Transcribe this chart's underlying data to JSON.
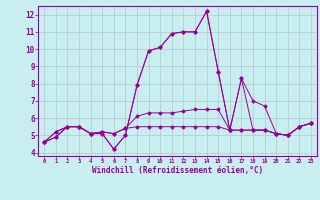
{
  "xlabel": "Windchill (Refroidissement éolien,°C)",
  "background_color": "#c8eef0",
  "grid_color": "#b0c8d0",
  "line_color": "#990099",
  "xlim": [
    -0.5,
    23.5
  ],
  "ylim": [
    3.8,
    12.5
  ],
  "yticks": [
    4,
    5,
    6,
    7,
    8,
    9,
    10,
    11,
    12
  ],
  "xticks": [
    0,
    1,
    2,
    3,
    4,
    5,
    6,
    7,
    8,
    9,
    10,
    11,
    12,
    13,
    14,
    15,
    16,
    17,
    18,
    19,
    20,
    21,
    22,
    23
  ],
  "series": [
    [
      4.6,
      4.9,
      5.5,
      5.5,
      5.1,
      5.1,
      4.2,
      5.0,
      7.9,
      9.9,
      10.1,
      10.9,
      11.0,
      11.0,
      12.2,
      8.7,
      5.3,
      8.3,
      7.0,
      6.7,
      5.1,
      5.0,
      5.5,
      5.7
    ],
    [
      4.6,
      4.9,
      5.5,
      5.5,
      5.1,
      5.1,
      4.2,
      5.0,
      7.9,
      9.9,
      10.1,
      10.9,
      11.0,
      11.0,
      12.2,
      8.7,
      5.3,
      8.3,
      5.3,
      5.3,
      5.1,
      5.0,
      5.5,
      5.7
    ],
    [
      4.6,
      5.2,
      5.5,
      5.5,
      5.1,
      5.2,
      5.1,
      5.4,
      6.1,
      6.3,
      6.3,
      6.3,
      6.4,
      6.5,
      6.5,
      6.5,
      5.3,
      5.3,
      5.3,
      5.3,
      5.1,
      5.0,
      5.5,
      5.7
    ],
    [
      4.6,
      5.2,
      5.5,
      5.5,
      5.1,
      5.2,
      5.1,
      5.4,
      5.5,
      5.5,
      5.5,
      5.5,
      5.5,
      5.5,
      5.5,
      5.5,
      5.3,
      5.3,
      5.3,
      5.3,
      5.1,
      5.0,
      5.5,
      5.7
    ]
  ]
}
